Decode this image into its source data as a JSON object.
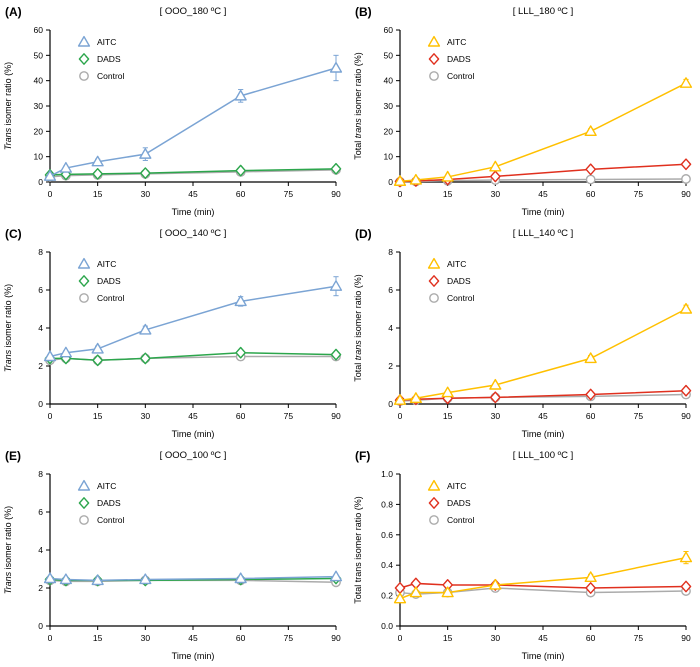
{
  "chart_data": [
    {
      "type": "line",
      "panel_label": "(A)",
      "title": "[ OOO_180 ºC ]",
      "xlabel": "Time (min)",
      "ylabel_parts": [
        {
          "text": "Trans",
          "italic": true
        },
        {
          "text": " isomer ratio (%)",
          "italic": false
        }
      ],
      "xlim": [
        0,
        90
      ],
      "xticks": [
        0,
        15,
        30,
        45,
        60,
        75,
        90
      ],
      "ylim": [
        0,
        60
      ],
      "yticks": [
        0,
        10,
        20,
        30,
        40,
        50,
        60
      ],
      "x": [
        0,
        5,
        15,
        30,
        60,
        90
      ],
      "legend_position": "top-left",
      "series": [
        {
          "name": "AITC",
          "marker": "triangle",
          "color": "#7BA4D4",
          "values": [
            2.3,
            5.5,
            8.0,
            11.0,
            34.0,
            45.0
          ],
          "errors": [
            0.5,
            0.8,
            1.0,
            2.5,
            2.5,
            5.0
          ]
        },
        {
          "name": "DADS",
          "marker": "diamond",
          "color": "#2CA64C",
          "values": [
            2.8,
            3.0,
            3.2,
            3.5,
            4.5,
            5.2
          ]
        },
        {
          "name": "Control",
          "marker": "circle",
          "color": "#ABABAB",
          "values": [
            2.0,
            2.5,
            2.8,
            3.2,
            4.0,
            4.8
          ]
        }
      ]
    },
    {
      "type": "line",
      "panel_label": "(B)",
      "title": "[ LLL_180 ºC ]",
      "xlabel": "Time (min)",
      "ylabel_parts": [
        {
          "text": "Total ",
          "italic": false
        },
        {
          "text": "trans",
          "italic": true
        },
        {
          "text": " isomer ratio (%)",
          "italic": false
        }
      ],
      "xlim": [
        0,
        90
      ],
      "xticks": [
        0,
        15,
        30,
        45,
        60,
        75,
        90
      ],
      "ylim": [
        0,
        60
      ],
      "yticks": [
        0,
        10,
        20,
        30,
        40,
        50,
        60
      ],
      "x": [
        0,
        5,
        15,
        30,
        60,
        90
      ],
      "legend_position": "top-left",
      "series": [
        {
          "name": "AITC",
          "marker": "triangle",
          "color": "#FFC000",
          "values": [
            0.3,
            0.8,
            2.0,
            6.0,
            20.0,
            39.0
          ],
          "errors": [
            0,
            0,
            0,
            0.5,
            1.0,
            1.5
          ]
        },
        {
          "name": "DADS",
          "marker": "diamond",
          "color": "#E0301E",
          "values": [
            0.2,
            0.4,
            1.0,
            2.2,
            5.0,
            7.0
          ]
        },
        {
          "name": "Control",
          "marker": "circle",
          "color": "#ABABAB",
          "values": [
            0.1,
            0.2,
            0.5,
            0.8,
            1.0,
            1.2
          ]
        }
      ]
    },
    {
      "type": "line",
      "panel_label": "(C)",
      "title": "[ OOO_140 ºC ]",
      "xlabel": "Time (min)",
      "ylabel_parts": [
        {
          "text": "Trans",
          "italic": true
        },
        {
          "text": " isomer ratio (%)",
          "italic": false
        }
      ],
      "xlim": [
        0,
        90
      ],
      "xticks": [
        0,
        15,
        30,
        45,
        60,
        75,
        90
      ],
      "ylim": [
        0,
        8
      ],
      "yticks": [
        0,
        2,
        4,
        6,
        8
      ],
      "x": [
        0,
        5,
        15,
        30,
        60,
        90
      ],
      "legend_position": "top-left",
      "series": [
        {
          "name": "AITC",
          "marker": "triangle",
          "color": "#7BA4D4",
          "values": [
            2.5,
            2.7,
            2.9,
            3.9,
            5.4,
            6.2
          ],
          "errors": [
            0.1,
            0.1,
            0.15,
            0.2,
            0.25,
            0.5
          ]
        },
        {
          "name": "DADS",
          "marker": "diamond",
          "color": "#2CA64C",
          "values": [
            2.4,
            2.4,
            2.3,
            2.4,
            2.7,
            2.6
          ]
        },
        {
          "name": "Control",
          "marker": "circle",
          "color": "#ABABAB",
          "values": [
            2.3,
            2.4,
            2.3,
            2.4,
            2.5,
            2.5
          ]
        }
      ]
    },
    {
      "type": "line",
      "panel_label": "(D)",
      "title": "[ LLL_140 ºC ]",
      "xlabel": "Time (min)",
      "ylabel_parts": [
        {
          "text": "Total ",
          "italic": false
        },
        {
          "text": "trans",
          "italic": true
        },
        {
          "text": " isomer ratio (%)",
          "italic": false
        }
      ],
      "xlim": [
        0,
        90
      ],
      "xticks": [
        0,
        15,
        30,
        45,
        60,
        75,
        90
      ],
      "ylim": [
        0,
        8
      ],
      "yticks": [
        0,
        2,
        4,
        6,
        8
      ],
      "x": [
        0,
        5,
        15,
        30,
        60,
        90
      ],
      "legend_position": "top-left",
      "series": [
        {
          "name": "AITC",
          "marker": "triangle",
          "color": "#FFC000",
          "values": [
            0.2,
            0.3,
            0.6,
            1.0,
            2.4,
            5.0
          ],
          "errors": [
            0,
            0,
            0,
            0.1,
            0.15,
            0.2
          ]
        },
        {
          "name": "DADS",
          "marker": "diamond",
          "color": "#E0301E",
          "values": [
            0.2,
            0.25,
            0.3,
            0.35,
            0.5,
            0.7
          ]
        },
        {
          "name": "Control",
          "marker": "circle",
          "color": "#ABABAB",
          "values": [
            0.15,
            0.2,
            0.3,
            0.35,
            0.4,
            0.5
          ]
        }
      ]
    },
    {
      "type": "line",
      "panel_label": "(E)",
      "title": "[ OOO_100 ºC ]",
      "xlabel": "Time (min)",
      "ylabel_parts": [
        {
          "text": "Trans",
          "italic": true
        },
        {
          "text": " isomer ratio (%)",
          "italic": false
        }
      ],
      "xlim": [
        0,
        90
      ],
      "xticks": [
        0,
        15,
        30,
        45,
        60,
        75,
        90
      ],
      "ylim": [
        0,
        8
      ],
      "yticks": [
        0,
        2,
        4,
        6,
        8
      ],
      "x": [
        0,
        5,
        15,
        30,
        60,
        90
      ],
      "legend_position": "top-left",
      "series": [
        {
          "name": "AITC",
          "marker": "triangle",
          "color": "#7BA4D4",
          "values": [
            2.5,
            2.45,
            2.4,
            2.45,
            2.5,
            2.6
          ]
        },
        {
          "name": "DADS",
          "marker": "diamond",
          "color": "#2CA64C",
          "values": [
            2.45,
            2.4,
            2.4,
            2.4,
            2.45,
            2.5
          ]
        },
        {
          "name": "Control",
          "marker": "circle",
          "color": "#ABABAB",
          "values": [
            2.4,
            2.35,
            2.35,
            2.4,
            2.4,
            2.3
          ]
        }
      ]
    },
    {
      "type": "line",
      "panel_label": "(F)",
      "title": "[ LLL_100 ºC ]",
      "xlabel": "Time (min)",
      "ylabel_parts": [
        {
          "text": "Total trans isomer ratio (%)",
          "italic": false
        }
      ],
      "xlim": [
        0,
        90
      ],
      "xticks": [
        0,
        15,
        30,
        45,
        60,
        75,
        90
      ],
      "ylim": [
        0,
        1
      ],
      "yticks": [
        0,
        0.2,
        0.4,
        0.6,
        0.8,
        1
      ],
      "ytick_decimals": 1,
      "x": [
        0,
        5,
        15,
        30,
        60,
        90
      ],
      "legend_position": "top-left",
      "series": [
        {
          "name": "AITC",
          "marker": "triangle",
          "color": "#FFC000",
          "values": [
            0.18,
            0.22,
            0.22,
            0.27,
            0.32,
            0.45
          ],
          "errors": [
            0,
            0,
            0,
            0,
            0.02,
            0.04
          ]
        },
        {
          "name": "DADS",
          "marker": "diamond",
          "color": "#E0301E",
          "values": [
            0.25,
            0.28,
            0.27,
            0.27,
            0.25,
            0.26
          ]
        },
        {
          "name": "Control",
          "marker": "circle",
          "color": "#ABABAB",
          "values": [
            0.22,
            0.21,
            0.22,
            0.25,
            0.22,
            0.23
          ]
        }
      ]
    }
  ]
}
